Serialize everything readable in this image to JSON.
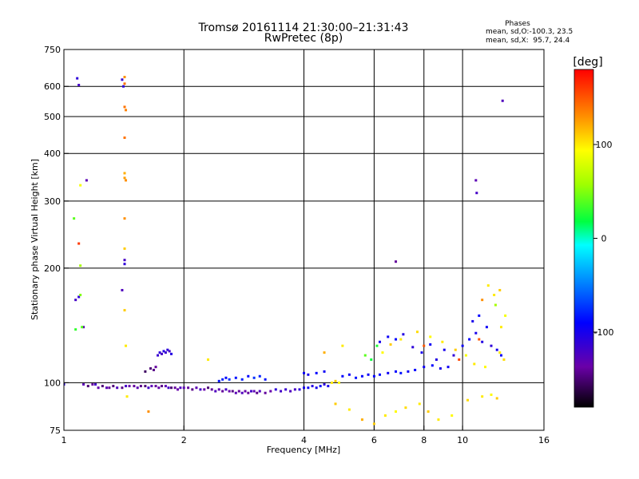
{
  "chart_data": {
    "type": "scatter",
    "title": "Tromsø 20161114 21:30:00–21:31:43",
    "subtitle": "RwPretec (8p)",
    "xlabel": "Frequency [MHz]",
    "ylabel": "Stationary phase Virtual Height [km]",
    "xscale": "log",
    "yscale": "log",
    "xlim": [
      1,
      16
    ],
    "ylim": [
      75,
      750
    ],
    "x_ticks": [
      1,
      2,
      4,
      6,
      8,
      10,
      16
    ],
    "x_tick_labels": [
      "1",
      "2",
      "4",
      "6",
      "8",
      "10",
      "16"
    ],
    "y_ticks": [
      75,
      100,
      200,
      300,
      400,
      500,
      600,
      750
    ],
    "y_tick_labels": [
      "75",
      "100",
      "200",
      "300",
      "400",
      "500",
      "600",
      "750"
    ],
    "grid": true,
    "stats": {
      "heading": "Phases",
      "line_o": "mean, sd,O:-100.3, 23.5",
      "line_x": "mean, sd,X:  95.7, 24.4",
      "mean_o": -100.3,
      "sd_o": 23.5,
      "mean_x": 95.7,
      "sd_x": 24.4
    },
    "colorbar": {
      "label": "[deg]",
      "min": -180,
      "max": 180,
      "ticks": [
        100,
        0,
        -100
      ],
      "tick_labels": [
        "100",
        "0",
        "-100"
      ]
    },
    "series": [
      {
        "points": [
          [
            1.0,
            99,
            -110
          ],
          [
            1.12,
            99,
            -130
          ],
          [
            1.15,
            98,
            -150
          ],
          [
            1.18,
            99,
            -140
          ],
          [
            1.2,
            99,
            -120
          ],
          [
            1.22,
            97,
            -135
          ],
          [
            1.25,
            98,
            -150
          ],
          [
            1.28,
            97,
            -130
          ],
          [
            1.3,
            97,
            -140
          ],
          [
            1.33,
            98,
            -150
          ],
          [
            1.36,
            97,
            -125
          ],
          [
            1.4,
            97,
            -145
          ],
          [
            1.43,
            98,
            -120
          ],
          [
            1.46,
            98,
            -135
          ],
          [
            1.5,
            98,
            -140
          ],
          [
            1.53,
            97,
            -130
          ],
          [
            1.56,
            98,
            -145
          ],
          [
            1.6,
            98,
            -150
          ],
          [
            1.63,
            97,
            -120
          ],
          [
            1.66,
            98,
            -130
          ],
          [
            1.7,
            98,
            -140
          ],
          [
            1.73,
            97,
            -135
          ],
          [
            1.76,
            98,
            -145
          ],
          [
            1.8,
            98,
            -130
          ],
          [
            1.83,
            97,
            -120
          ],
          [
            1.86,
            97,
            -150
          ],
          [
            1.9,
            97,
            -140
          ],
          [
            1.93,
            96,
            -135
          ],
          [
            1.96,
            97,
            -125
          ],
          [
            2.0,
            97,
            -130
          ],
          [
            2.05,
            97,
            -140
          ],
          [
            2.1,
            96,
            -145
          ],
          [
            2.15,
            97,
            -130
          ],
          [
            2.2,
            96,
            -120
          ],
          [
            2.25,
            96,
            -135
          ],
          [
            2.3,
            97,
            -150
          ],
          [
            2.35,
            96,
            -140
          ],
          [
            2.4,
            95,
            -125
          ],
          [
            2.45,
            96,
            -130
          ],
          [
            2.5,
            95,
            -140
          ],
          [
            2.55,
            96,
            -120
          ],
          [
            2.6,
            95,
            -135
          ],
          [
            2.65,
            95,
            -145
          ],
          [
            2.7,
            94,
            -130
          ],
          [
            2.75,
            95,
            -140
          ],
          [
            2.8,
            94,
            -125
          ],
          [
            2.85,
            95,
            -135
          ],
          [
            2.9,
            94,
            -140
          ],
          [
            2.95,
            95,
            -120
          ],
          [
            3.0,
            95,
            -130
          ],
          [
            3.05,
            94,
            -145
          ],
          [
            3.1,
            95,
            -125
          ],
          [
            3.2,
            94,
            -140
          ],
          [
            3.3,
            95,
            -135
          ],
          [
            3.4,
            96,
            -110
          ],
          [
            3.5,
            95,
            -120
          ],
          [
            3.6,
            96,
            -115
          ],
          [
            3.7,
            95,
            -125
          ],
          [
            3.8,
            96,
            -120
          ],
          [
            3.9,
            96,
            -110
          ],
          [
            4.0,
            97,
            -100
          ],
          [
            4.1,
            97,
            -95
          ],
          [
            4.2,
            98,
            -105
          ],
          [
            4.3,
            97,
            -100
          ],
          [
            4.4,
            98,
            -90
          ],
          [
            4.5,
            99,
            -110
          ],
          [
            4.6,
            98,
            -100
          ],
          [
            4.7,
            100,
            100
          ],
          [
            4.8,
            101,
            110
          ],
          [
            4.9,
            100,
            95
          ],
          [
            2.45,
            101,
            -85
          ],
          [
            2.5,
            102,
            -80
          ],
          [
            2.55,
            103,
            -90
          ],
          [
            2.6,
            102,
            -75
          ],
          [
            2.7,
            103,
            -85
          ],
          [
            2.8,
            102,
            -80
          ],
          [
            2.9,
            104,
            -90
          ],
          [
            3.0,
            103,
            -75
          ],
          [
            3.1,
            104,
            -80
          ],
          [
            3.2,
            102,
            -85
          ],
          [
            1.72,
            118,
            -115
          ],
          [
            1.74,
            120,
            -110
          ],
          [
            1.76,
            119,
            -120
          ],
          [
            1.78,
            121,
            -105
          ],
          [
            1.8,
            120,
            -115
          ],
          [
            1.82,
            122,
            -110
          ],
          [
            1.84,
            121,
            -120
          ],
          [
            1.86,
            119,
            -105
          ],
          [
            1.65,
            109,
            -150
          ],
          [
            1.68,
            108,
            -145
          ],
          [
            1.7,
            110,
            -140
          ],
          [
            1.6,
            107,
            -155
          ],
          [
            4.0,
            106,
            -95
          ],
          [
            4.1,
            105,
            -100
          ],
          [
            4.3,
            106,
            -90
          ],
          [
            4.5,
            107,
            -95
          ],
          [
            5.0,
            104,
            -90
          ],
          [
            5.2,
            105,
            -95
          ],
          [
            5.4,
            103,
            -85
          ],
          [
            5.6,
            104,
            -90
          ],
          [
            5.8,
            105,
            -95
          ],
          [
            6.0,
            104,
            -90
          ],
          [
            6.2,
            105,
            -85
          ],
          [
            6.5,
            106,
            -95
          ],
          [
            6.8,
            107,
            -90
          ],
          [
            7.0,
            106,
            -85
          ],
          [
            7.3,
            107,
            -95
          ],
          [
            7.6,
            108,
            -90
          ],
          [
            8.0,
            110,
            -95
          ],
          [
            8.4,
            111,
            -90
          ],
          [
            8.8,
            109,
            -100
          ],
          [
            9.2,
            110,
            -95
          ],
          [
            6.2,
            128,
            -100
          ],
          [
            6.5,
            132,
            -95
          ],
          [
            6.8,
            130,
            -90
          ],
          [
            7.1,
            134,
            -105
          ],
          [
            7.5,
            124,
            -110
          ],
          [
            7.9,
            120,
            -100
          ],
          [
            8.3,
            126,
            -95
          ],
          [
            8.6,
            115,
            -105
          ],
          [
            9.0,
            122,
            -100
          ],
          [
            9.5,
            118,
            -110
          ],
          [
            10.0,
            125,
            -95
          ],
          [
            10.4,
            130,
            -90
          ],
          [
            10.8,
            135,
            -100
          ],
          [
            11.2,
            128,
            -105
          ],
          [
            11.5,
            140,
            -95
          ],
          [
            11.8,
            125,
            -110
          ],
          [
            12.2,
            122,
            -100
          ],
          [
            12.5,
            118,
            -95
          ],
          [
            10.6,
            145,
            -100
          ],
          [
            11.0,
            150,
            -90
          ],
          [
            1.08,
            630,
            -110
          ],
          [
            1.09,
            605,
            -120
          ],
          [
            1.14,
            340,
            -130
          ],
          [
            1.4,
            625,
            -115
          ],
          [
            1.41,
            600,
            -110
          ],
          [
            1.42,
            210,
            -120
          ],
          [
            1.42,
            205,
            -110
          ],
          [
            1.4,
            175,
            -125
          ],
          [
            6.8,
            208,
            -140
          ],
          [
            10.8,
            340,
            -130
          ],
          [
            10.85,
            315,
            -120
          ],
          [
            12.6,
            550,
            -125
          ],
          [
            1.07,
            165,
            -120
          ],
          [
            1.09,
            168,
            -110
          ],
          [
            1.12,
            140,
            -130
          ]
        ]
      },
      {
        "points": [
          [
            1.42,
            635,
            130
          ],
          [
            1.42,
            610,
            140
          ],
          [
            1.42,
            530,
            140
          ],
          [
            1.43,
            520,
            135
          ],
          [
            1.42,
            440,
            140
          ],
          [
            1.42,
            355,
            120
          ],
          [
            1.42,
            345,
            125
          ],
          [
            1.43,
            340,
            130
          ],
          [
            1.42,
            270,
            130
          ],
          [
            1.42,
            225,
            110
          ],
          [
            1.42,
            155,
            110
          ],
          [
            1.43,
            125,
            100
          ],
          [
            1.1,
            330,
            90
          ],
          [
            1.09,
            232,
            160
          ],
          [
            1.1,
            203,
            60
          ],
          [
            1.06,
            270,
            40
          ],
          [
            1.07,
            138,
            30
          ],
          [
            1.11,
            140,
            40
          ],
          [
            1.1,
            170,
            50
          ],
          [
            1.44,
            92,
            100
          ],
          [
            1.63,
            84,
            130
          ],
          [
            2.3,
            115,
            100
          ],
          [
            4.5,
            120,
            120
          ],
          [
            5.0,
            125,
            100
          ],
          [
            4.8,
            88,
            110
          ],
          [
            5.2,
            85,
            100
          ],
          [
            5.6,
            80,
            120
          ],
          [
            6.0,
            78,
            110
          ],
          [
            6.4,
            82,
            100
          ],
          [
            6.8,
            84,
            95
          ],
          [
            7.2,
            86,
            105
          ],
          [
            7.8,
            88,
            100
          ],
          [
            8.2,
            84,
            110
          ],
          [
            8.7,
            80,
            100
          ],
          [
            9.4,
            82,
            95
          ],
          [
            10.3,
            90,
            105
          ],
          [
            11.2,
            92,
            100
          ],
          [
            11.8,
            93,
            95
          ],
          [
            12.2,
            91,
            110
          ],
          [
            12.4,
            120,
            100
          ],
          [
            12.7,
            115,
            105
          ],
          [
            11.4,
            110,
            95
          ],
          [
            10.7,
            112,
            100
          ],
          [
            10.2,
            118,
            90
          ],
          [
            9.6,
            122,
            110
          ],
          [
            8.9,
            128,
            100
          ],
          [
            8.3,
            132,
            95
          ],
          [
            7.7,
            136,
            105
          ],
          [
            7.0,
            130,
            100
          ],
          [
            6.6,
            126,
            110
          ],
          [
            6.3,
            120,
            95
          ],
          [
            5.9,
            115,
            20
          ],
          [
            5.7,
            118,
            40
          ],
          [
            6.1,
            125,
            25
          ],
          [
            12.0,
            170,
            100
          ],
          [
            11.6,
            180,
            100
          ],
          [
            12.4,
            175,
            110
          ],
          [
            12.8,
            150,
            90
          ],
          [
            12.1,
            160,
            60
          ],
          [
            11.2,
            165,
            130
          ],
          [
            12.5,
            140,
            100
          ],
          [
            8.0,
            125,
            150
          ],
          [
            9.8,
            115,
            155
          ],
          [
            11.0,
            130,
            150
          ]
        ]
      }
    ]
  }
}
